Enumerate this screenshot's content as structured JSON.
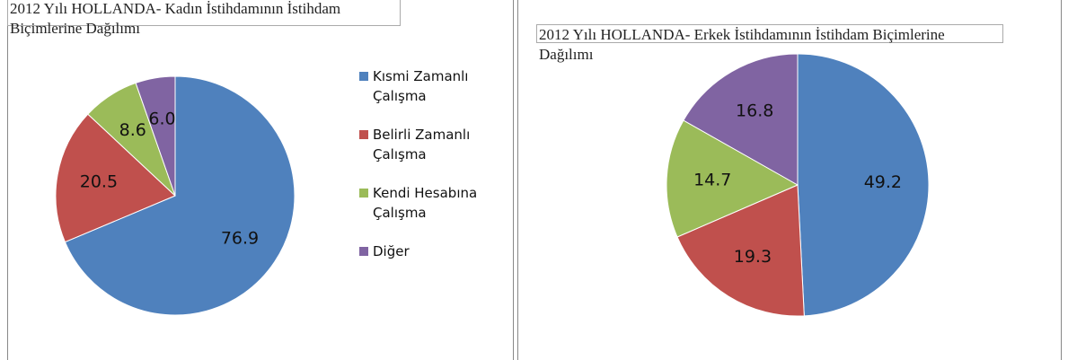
{
  "chart_data": [
    {
      "type": "pie",
      "title": "2012 Yılı HOLLANDA- Kadın İstihdamının İstihdam Biçimlerine Dağılımı",
      "categories": [
        "Kısmi Zamanlı Çalışma",
        "Belirli Zamanlı Çalışma",
        "Kendi Hesabına Çalışma",
        "Diğer"
      ],
      "values": [
        76.9,
        20.5,
        8.6,
        6.0
      ],
      "value_labels": [
        "76.9",
        "20.5",
        "8.6",
        "6.0"
      ],
      "colors": [
        "#4f81bd",
        "#c0504d",
        "#9bbb59",
        "#8064a2"
      ],
      "legend": "right"
    },
    {
      "type": "pie",
      "title": "2012 Yılı HOLLANDA- Erkek İstihdamının İstihdam Biçimlerine Dağılımı",
      "values": [
        49.2,
        19.3,
        14.7,
        16.8
      ],
      "colors": [
        "#4f81bd",
        "#c0504d",
        "#9bbb59",
        "#8064a2"
      ]
    }
  ]
}
